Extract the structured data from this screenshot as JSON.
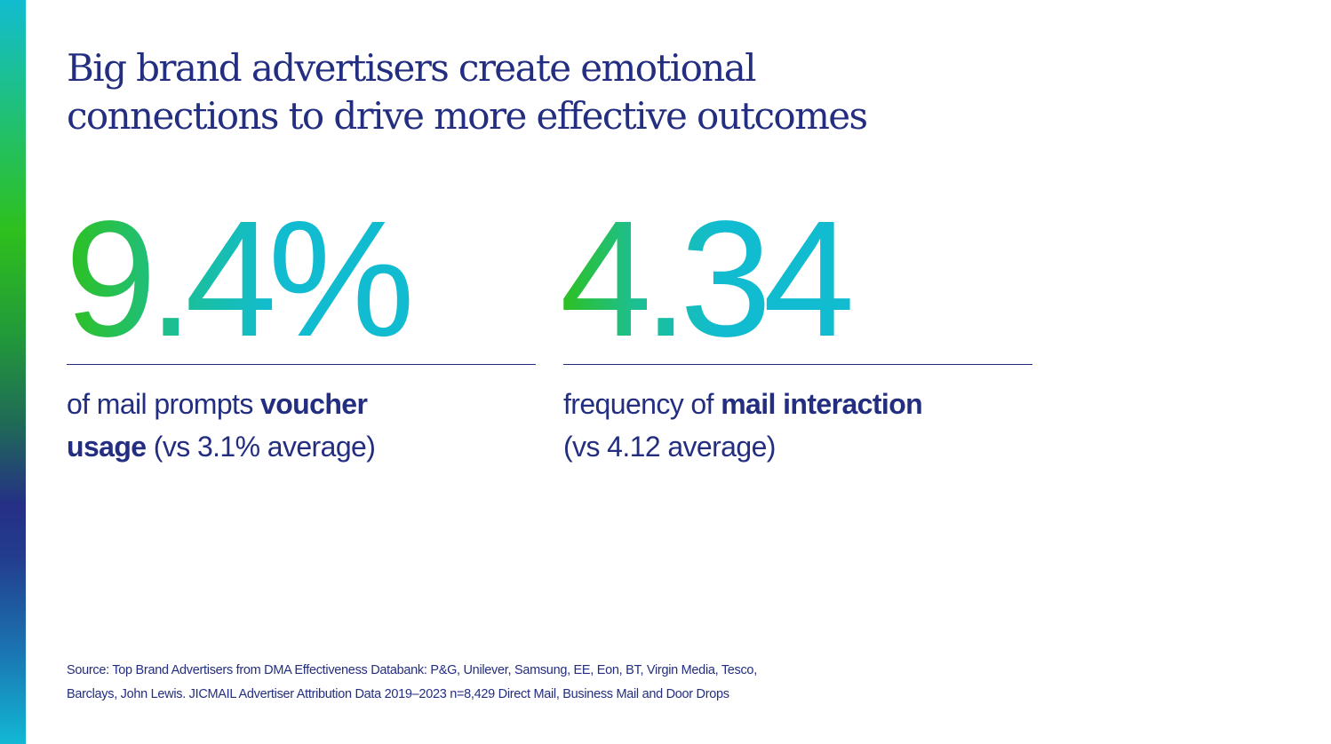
{
  "headline": {
    "line1": "Big brand advertisers create emotional",
    "line2": "connections to drive more effective outcomes"
  },
  "stats": [
    {
      "value": "9.4%",
      "text_before": "of mail prompts ",
      "bold_line1": "voucher",
      "bold_line2": "usage",
      "text_after": " (vs 3.1% average)"
    },
    {
      "value": "4.34",
      "text_before": "frequency of ",
      "bold": "mail interaction",
      "text_after": "(vs 4.12 average)"
    }
  ],
  "source": {
    "line1": "Source: Top Brand Advertisers from DMA Effectiveness Databank: P&G, Unilever, Samsung, EE, Eon, BT, Virgin Media, Tesco,",
    "line2": "Barclays, John Lewis. JICMAIL Advertiser Attribution Data 2019–2023 n=8,429 Direct Mail, Business Mail and Door Drops"
  },
  "colors": {
    "navy": "#232e80",
    "green": "#2ec01d",
    "cyan": "#12bcd0",
    "background": "#ffffff"
  }
}
